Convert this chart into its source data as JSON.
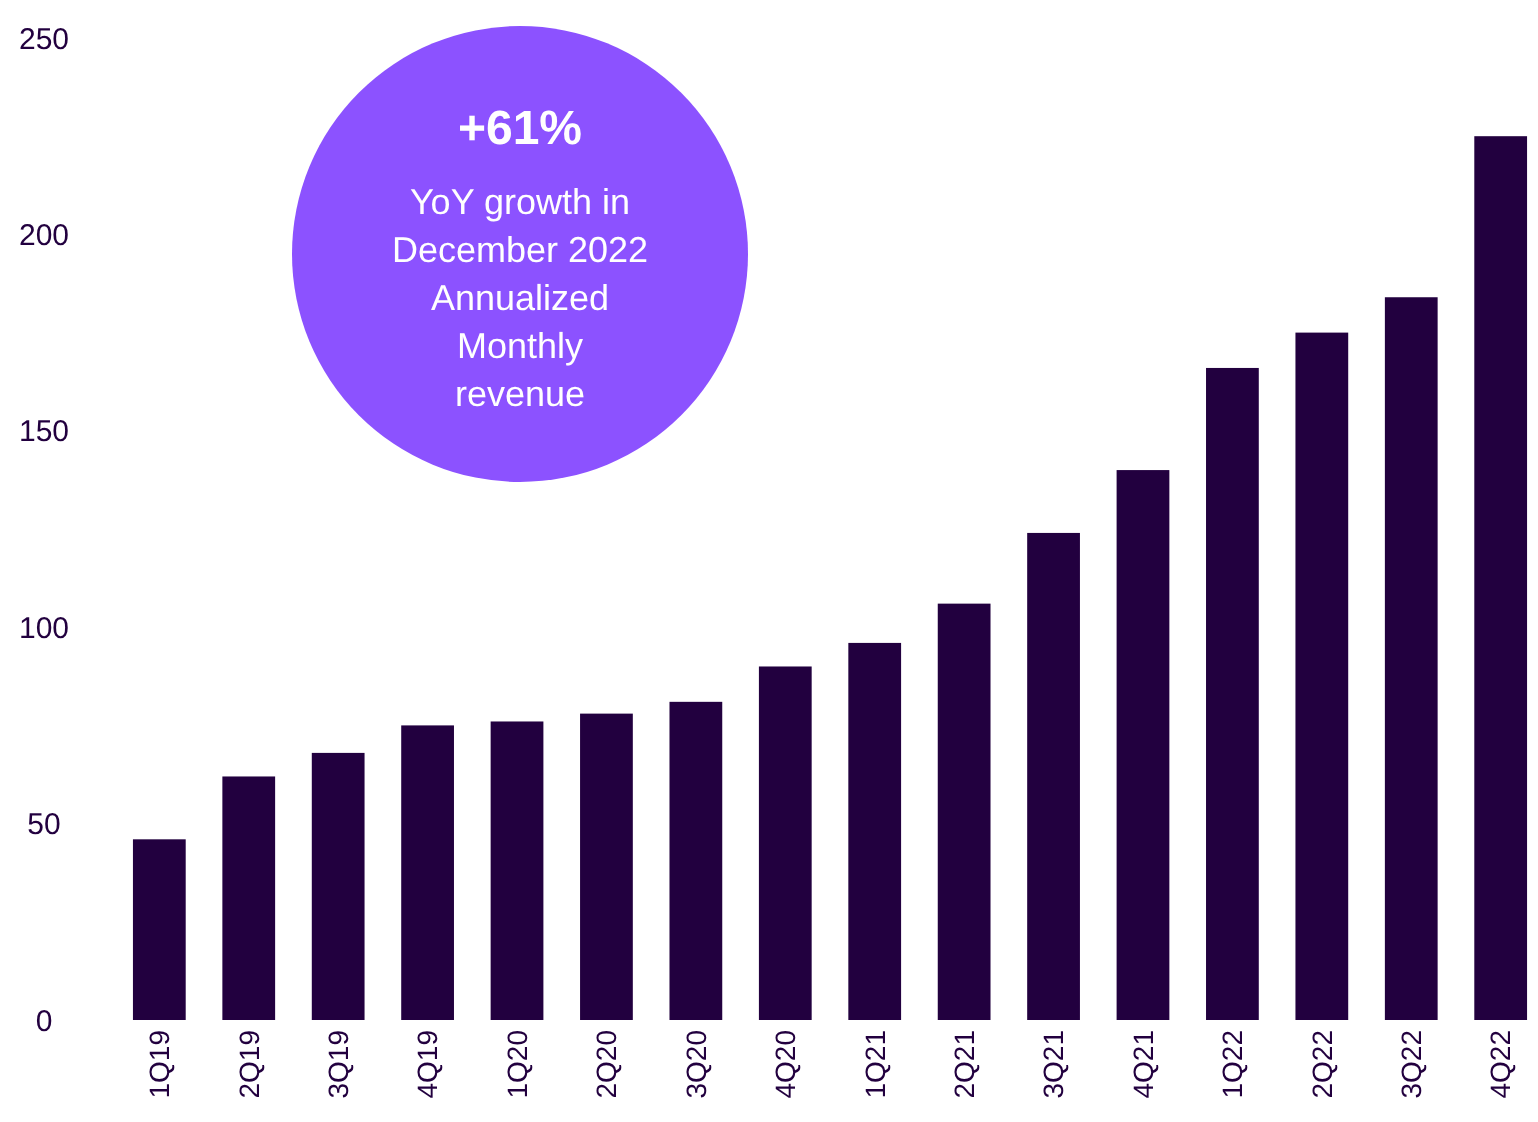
{
  "chart_data": {
    "type": "bar",
    "categories": [
      "1Q19",
      "2Q19",
      "3Q19",
      "4Q19",
      "1Q20",
      "2Q20",
      "3Q20",
      "4Q20",
      "1Q21",
      "2Q21",
      "3Q21",
      "4Q21",
      "1Q22",
      "2Q22",
      "3Q22",
      "4Q22"
    ],
    "values": [
      46,
      62,
      68,
      75,
      76,
      78,
      81,
      90,
      96,
      106,
      124,
      140,
      166,
      175,
      184,
      225
    ],
    "color": "#22003f",
    "ylim": [
      0,
      250
    ],
    "yticks": [
      0,
      50,
      100,
      150,
      200,
      250
    ],
    "grid": false,
    "annotations": [
      "+61%",
      "YoY growth in\nDecember 2022\nAnnualized\nMonthly\nrevenue"
    ]
  }
}
